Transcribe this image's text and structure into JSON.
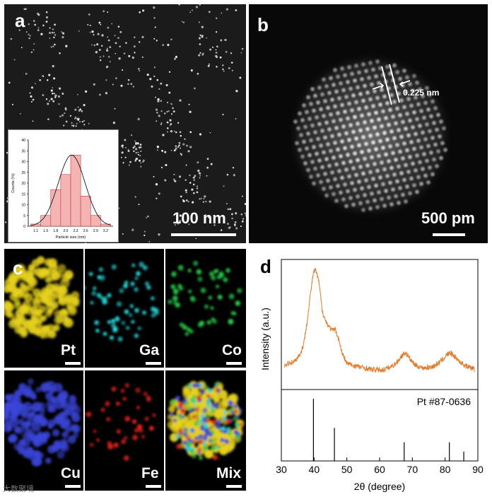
{
  "panels": {
    "a": {
      "label": "a",
      "scale_bar": "100 nm"
    },
    "b": {
      "label": "b",
      "scale_bar": "500 pm",
      "annotation": "0.225 nm"
    },
    "c": {
      "label": "c",
      "elements": [
        "Pt",
        "Ga",
        "Co",
        "Cu",
        "Fe",
        "Mix"
      ],
      "colors": {
        "Pt": "#e6d11e",
        "Ga": "#29d6d9",
        "Co": "#27c94a",
        "Cu": "#3a45d8",
        "Fe": "#e0221e"
      }
    },
    "d": {
      "label": "d"
    }
  },
  "watermark": "大数聚境",
  "chart_data": [
    {
      "type": "bar",
      "title": "",
      "xlabel": "Particle size (nm)",
      "ylabel": "Counts (%)",
      "categories": [
        "1.1",
        "1.4",
        "1.7",
        "2.0",
        "2.3",
        "2.6",
        "2.9",
        "3.2"
      ],
      "values": [
        1,
        5,
        17,
        24,
        33,
        14,
        5,
        1
      ],
      "xticks": [
        "1.1",
        "1.5",
        "1.8",
        "2.0",
        "2.3",
        "2.6",
        "2.9",
        "3.2"
      ],
      "ylim": [
        0,
        40
      ],
      "yticks": [
        "0",
        "5",
        "10",
        "15",
        "20",
        "25",
        "30",
        "35",
        "40"
      ],
      "fit_curve": "gaussian",
      "bar_color": "#f4b4b4",
      "bar_edge": "#c43a3a"
    },
    {
      "type": "line",
      "xlabel": "2θ (degree)",
      "ylabel": "Intensity (a.u.)",
      "xlim": [
        30,
        90
      ],
      "xticks": [
        "30",
        "40",
        "50",
        "60",
        "70",
        "80",
        "90"
      ],
      "line_color": "#e07a2a",
      "series": [
        {
          "x": [
            30,
            32,
            34,
            36,
            37,
            38,
            39,
            39.8,
            40.5,
            41.5,
            42.5,
            43.5,
            44.5,
            45.5,
            46.5,
            47.5,
            48.5,
            50,
            52,
            55,
            58,
            61,
            63,
            65,
            66,
            67,
            67.8,
            68.5,
            69.5,
            71,
            73,
            75,
            77,
            79,
            80.5,
            81.5,
            82.5,
            84,
            86,
            88,
            89
          ],
          "y": [
            0.08,
            0.12,
            0.14,
            0.22,
            0.33,
            0.55,
            0.8,
            0.98,
            1.0,
            0.88,
            0.62,
            0.52,
            0.47,
            0.43,
            0.44,
            0.35,
            0.22,
            0.12,
            0.1,
            0.08,
            0.06,
            0.06,
            0.08,
            0.12,
            0.16,
            0.2,
            0.22,
            0.2,
            0.15,
            0.1,
            0.08,
            0.08,
            0.1,
            0.15,
            0.2,
            0.22,
            0.2,
            0.15,
            0.1,
            0.08,
            0.06
          ]
        }
      ],
      "reference": {
        "label": "Pt #87-0636",
        "peaks_x": [
          39.8,
          46.2,
          67.5,
          81.3,
          85.7
        ],
        "peaks_rel_intensity": [
          1.0,
          0.53,
          0.3,
          0.3,
          0.15
        ]
      }
    }
  ]
}
